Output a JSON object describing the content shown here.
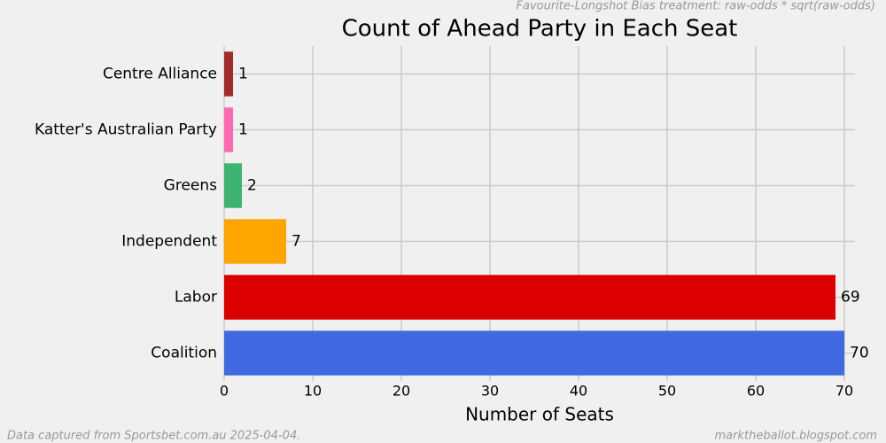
{
  "chart_data": {
    "type": "barh",
    "title": "Count of Ahead Party in Each Seat",
    "subtitle": "Favourite-Longshot Bias treatment: raw-odds * sqrt(raw-odds)",
    "x_label": "Number of Seats",
    "footer_left": "Data captured from Sportsbet.com.au 2025-04-04.",
    "footer_right": "marktheballot.blogspot.com",
    "categories": [
      "Coalition",
      "Labor",
      "Independent",
      "Greens",
      "Katter's Australian Party",
      "Centre Alliance"
    ],
    "values": [
      70,
      69,
      7,
      2,
      1,
      1
    ],
    "colors": [
      "#4169e1",
      "#dd0000",
      "#ffa500",
      "#3cb371",
      "#ff69b4",
      "#a52a2a"
    ],
    "xlim": [
      0,
      71.2
    ],
    "xticks": [
      0,
      10,
      20,
      30,
      40,
      50,
      60,
      70
    ],
    "grid": true
  }
}
